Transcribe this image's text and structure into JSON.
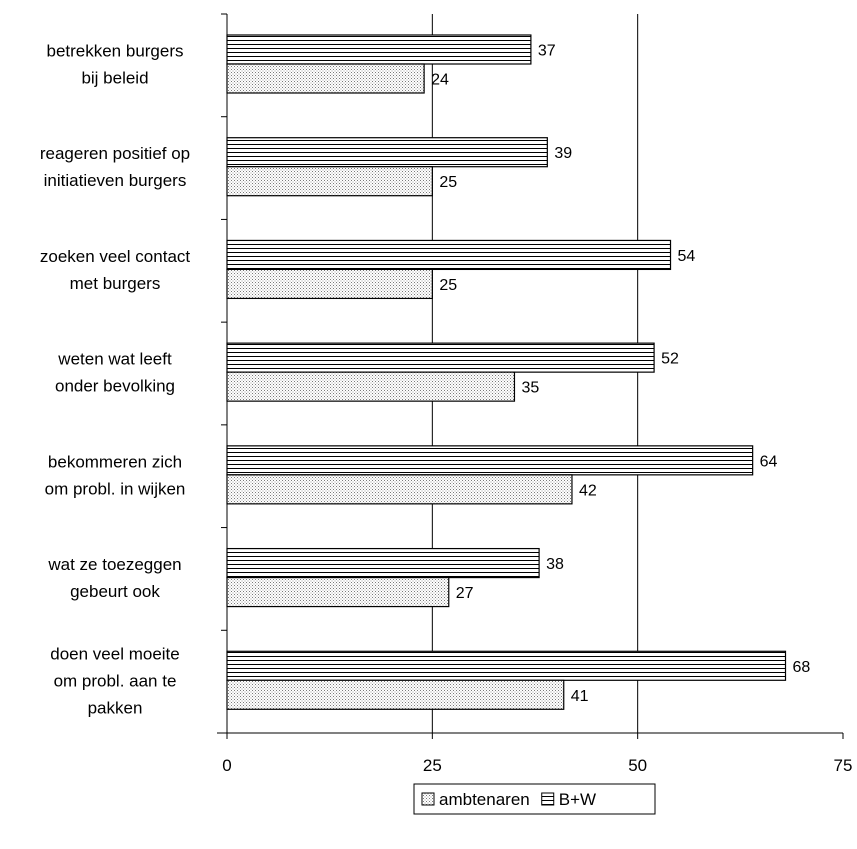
{
  "chart_data": {
    "type": "bar",
    "orientation": "horizontal",
    "categories": [
      [
        "betrekken burgers",
        "bij beleid"
      ],
      [
        "reageren positief op",
        "initiatieven burgers"
      ],
      [
        "zoeken veel contact",
        "met burgers"
      ],
      [
        "weten wat leeft",
        "onder bevolking"
      ],
      [
        "bekommeren zich",
        "om probl. in wijken"
      ],
      [
        "wat ze toezeggen",
        "gebeurt ook"
      ],
      [
        "doen veel moeite",
        "om probl. aan te",
        "pakken"
      ]
    ],
    "series": [
      {
        "name": "B+W",
        "pattern": "horizontal-stripes",
        "values": [
          37,
          39,
          54,
          52,
          64,
          38,
          68
        ]
      },
      {
        "name": "ambtenaren",
        "pattern": "dots",
        "values": [
          24,
          25,
          25,
          35,
          42,
          27,
          41
        ]
      }
    ],
    "xlim": [
      0,
      75
    ],
    "xticks": [
      "0",
      "25",
      "50",
      "75"
    ],
    "grid": "vertical lines at 25 and 50",
    "legend": {
      "position": "bottom-center",
      "entries": [
        {
          "label": "ambtenaren",
          "pattern": "dots"
        },
        {
          "label": "B+W",
          "pattern": "horizontal-stripes"
        }
      ]
    },
    "title": "",
    "xlabel": "",
    "ylabel": ""
  }
}
